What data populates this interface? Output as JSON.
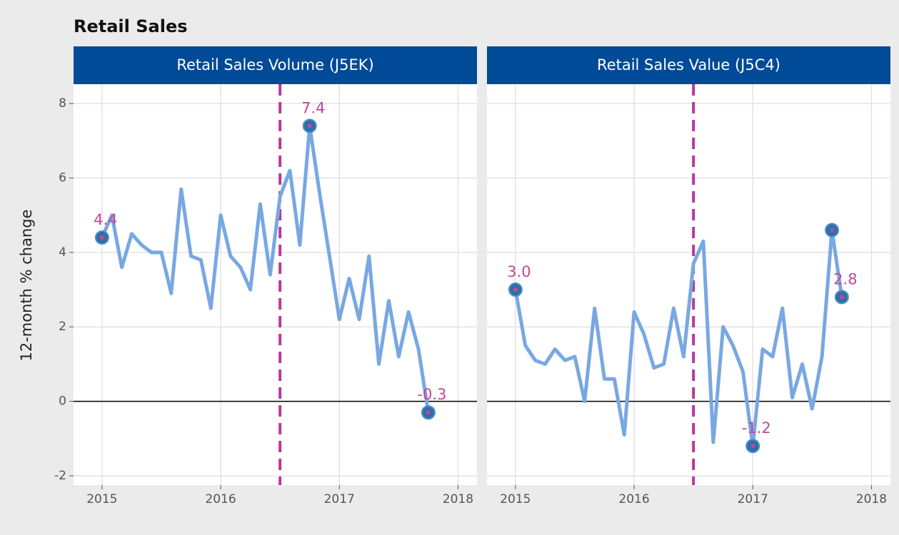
{
  "title": "Retail Sales",
  "ylabel": "12-month % change",
  "chart_data": [
    {
      "type": "line",
      "title": "Retail Sales Volume (J5EK)",
      "color": "#78a8e2",
      "x": [
        2015,
        2015.083,
        2015.167,
        2015.25,
        2015.333,
        2015.417,
        2015.5,
        2015.583,
        2015.667,
        2015.75,
        2015.833,
        2015.917,
        2016,
        2016.083,
        2016.167,
        2016.25,
        2016.333,
        2016.417,
        2016.5,
        2016.583,
        2016.667,
        2016.75,
        2016.833,
        2016.917,
        2017,
        2017.083,
        2017.167,
        2017.25,
        2017.333,
        2017.417,
        2017.5,
        2017.583,
        2017.667,
        2017.75
      ],
      "values": [
        4.4,
        5.0,
        3.6,
        4.5,
        4.2,
        4.0,
        4.0,
        2.9,
        5.7,
        3.9,
        3.8,
        2.5,
        5.0,
        3.9,
        3.6,
        3.0,
        5.3,
        3.4,
        5.5,
        6.2,
        4.2,
        7.4,
        5.6,
        3.9,
        2.2,
        3.3,
        2.2,
        3.9,
        1.0,
        2.7,
        1.2,
        2.4,
        1.4,
        -0.3
      ],
      "points": [
        {
          "x": 2015,
          "value": 4.4,
          "label": "4.4"
        },
        {
          "x": 2016.75,
          "value": 7.4,
          "label": "7.4"
        },
        {
          "x": 2017.75,
          "value": -0.3,
          "label": "-0.3"
        }
      ],
      "vline": 2016.5,
      "hline": 0,
      "xlim": [
        2014.76,
        2018.16
      ],
      "xticks": [
        2015,
        2016,
        2017,
        2018
      ],
      "ylim": [
        -2.25,
        8.52
      ],
      "yticks": [
        -2,
        0,
        2,
        4,
        6,
        8
      ],
      "grid": true
    },
    {
      "type": "line",
      "title": "Retail Sales Value (J5C4)",
      "color": "#78a8e2",
      "x": [
        2015,
        2015.083,
        2015.167,
        2015.25,
        2015.333,
        2015.417,
        2015.5,
        2015.583,
        2015.667,
        2015.75,
        2015.833,
        2015.917,
        2016,
        2016.083,
        2016.167,
        2016.25,
        2016.333,
        2016.417,
        2016.5,
        2016.583,
        2016.667,
        2016.75,
        2016.833,
        2016.917,
        2017,
        2017.083,
        2017.167,
        2017.25,
        2017.333,
        2017.417,
        2017.5,
        2017.583,
        2017.667,
        2017.75
      ],
      "values": [
        3.0,
        1.5,
        1.1,
        1.0,
        1.4,
        1.1,
        1.2,
        0.0,
        2.5,
        0.6,
        0.6,
        -0.9,
        2.4,
        1.8,
        0.9,
        1.0,
        2.5,
        1.2,
        3.7,
        4.3,
        -1.1,
        2.0,
        1.5,
        0.8,
        -1.2,
        1.4,
        1.2,
        2.5,
        0.1,
        1.0,
        -0.2,
        1.2,
        4.6,
        2.8
      ],
      "points": [
        {
          "x": 2015,
          "value": 3.0,
          "label": "3.0"
        },
        {
          "x": 2017,
          "value": -1.2,
          "label": "-1.2"
        },
        {
          "x": 2017.667,
          "value": 4.6
        },
        {
          "x": 2017.75,
          "value": 2.8,
          "label": "2.8"
        }
      ],
      "vline": 2016.5,
      "hline": 0,
      "xlim": [
        2014.76,
        2018.16
      ],
      "xticks": [
        2015,
        2016,
        2017,
        2018
      ],
      "ylim": [
        -2.25,
        8.52
      ],
      "yticks": [
        -2,
        0,
        2,
        4,
        6,
        8
      ],
      "grid": true
    }
  ]
}
